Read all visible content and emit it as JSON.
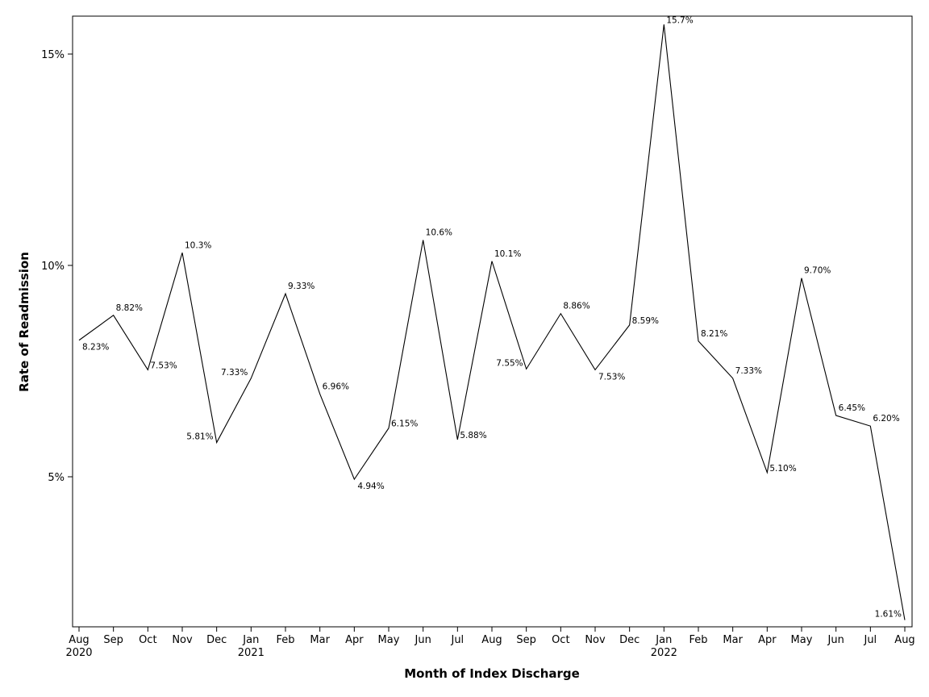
{
  "chart_data": {
    "type": "line",
    "title": "",
    "xlabel": "Month of Index Discharge",
    "ylabel": "Rate of Readmission",
    "x": [
      {
        "month": "Aug",
        "year": "2020"
      },
      {
        "month": "Sep",
        "year": ""
      },
      {
        "month": "Oct",
        "year": ""
      },
      {
        "month": "Nov",
        "year": ""
      },
      {
        "month": "Dec",
        "year": ""
      },
      {
        "month": "Jan",
        "year": "2021"
      },
      {
        "month": "Feb",
        "year": ""
      },
      {
        "month": "Mar",
        "year": ""
      },
      {
        "month": "Apr",
        "year": ""
      },
      {
        "month": "May",
        "year": ""
      },
      {
        "month": "Jun",
        "year": ""
      },
      {
        "month": "Jul",
        "year": ""
      },
      {
        "month": "Aug",
        "year": ""
      },
      {
        "month": "Sep",
        "year": ""
      },
      {
        "month": "Oct",
        "year": ""
      },
      {
        "month": "Nov",
        "year": ""
      },
      {
        "month": "Dec",
        "year": ""
      },
      {
        "month": "Jan",
        "year": "2022"
      },
      {
        "month": "Feb",
        "year": ""
      },
      {
        "month": "Mar",
        "year": ""
      },
      {
        "month": "Apr",
        "year": ""
      },
      {
        "month": "May",
        "year": ""
      },
      {
        "month": "Jun",
        "year": ""
      },
      {
        "month": "Jul",
        "year": ""
      },
      {
        "month": "Aug",
        "year": ""
      }
    ],
    "values": [
      8.23,
      8.82,
      7.53,
      10.3,
      5.81,
      7.33,
      9.33,
      6.96,
      4.94,
      6.15,
      10.6,
      5.88,
      10.1,
      7.55,
      8.86,
      7.53,
      8.59,
      15.7,
      8.21,
      7.33,
      5.1,
      9.7,
      6.45,
      6.2,
      1.61
    ],
    "value_labels": [
      "8.23%",
      "8.82%",
      "7.53%",
      "10.3%",
      "5.81%",
      "7.33%",
      "9.33%",
      "6.96%",
      "4.94%",
      "6.15%",
      "10.6%",
      "5.88%",
      "10.1%",
      "7.55%",
      "8.86%",
      "7.53%",
      "8.59%",
      "15.7%",
      "8.21%",
      "7.33%",
      "5.10%",
      "9.70%",
      "6.45%",
      "6.20%",
      "1.61%"
    ],
    "label_side": [
      "below",
      "above",
      "right",
      "above",
      "left",
      "left",
      "above",
      "above",
      "below",
      "right",
      "above",
      "right",
      "above",
      "left",
      "above",
      "below",
      "right",
      "right",
      "above",
      "above",
      "right",
      "above",
      "above",
      "above",
      "left"
    ],
    "yticks": [
      {
        "value": 5,
        "label": "5%"
      },
      {
        "value": 10,
        "label": "10%"
      },
      {
        "value": 15,
        "label": "15%"
      }
    ],
    "ylim": [
      1.5,
      16.0
    ],
    "grid": false,
    "legend": "none",
    "line_color": "#000000"
  }
}
